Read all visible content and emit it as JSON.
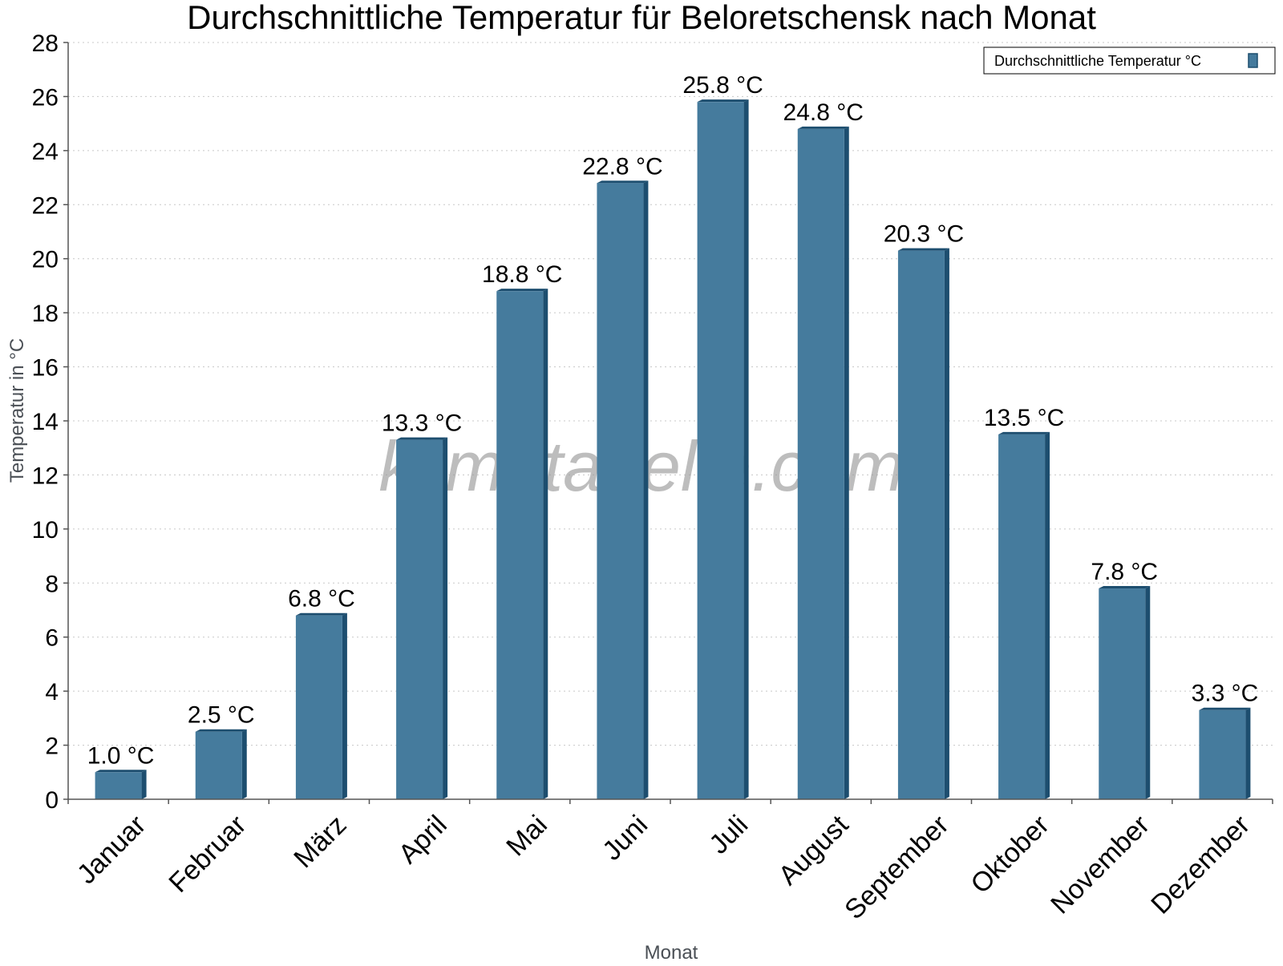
{
  "chart_data": {
    "type": "bar",
    "title": "Durchschnittliche Temperatur für Beloretschensk nach Monat",
    "xlabel": "Monat",
    "ylabel": "Temperatur in °C",
    "ylim": [
      0,
      28
    ],
    "yticks": [
      0,
      2,
      4,
      6,
      8,
      10,
      12,
      14,
      16,
      18,
      20,
      22,
      24,
      26,
      28
    ],
    "grid": true,
    "legend_position": "top-right",
    "categories": [
      "Januar",
      "Februar",
      "März",
      "April",
      "Mai",
      "Juni",
      "Juli",
      "August",
      "September",
      "Oktober",
      "November",
      "Dezember"
    ],
    "series": [
      {
        "name": "Durchschnittliche Temperatur °C",
        "values": [
          1.0,
          2.5,
          6.8,
          13.3,
          18.8,
          22.8,
          25.8,
          24.8,
          20.3,
          13.5,
          7.8,
          3.3
        ],
        "labels": [
          "1.0 °C",
          "2.5 °C",
          "6.8 °C",
          "13.3 °C",
          "18.8 °C",
          "22.8 °C",
          "25.8 °C",
          "24.8 °C",
          "20.3 °C",
          "13.5 °C",
          "7.8 °C",
          "3.3 °C"
        ]
      }
    ],
    "colors": {
      "bar": "#457b9d",
      "bar_side": "#1d4e6f"
    }
  },
  "watermark": "klimatabelle.com"
}
